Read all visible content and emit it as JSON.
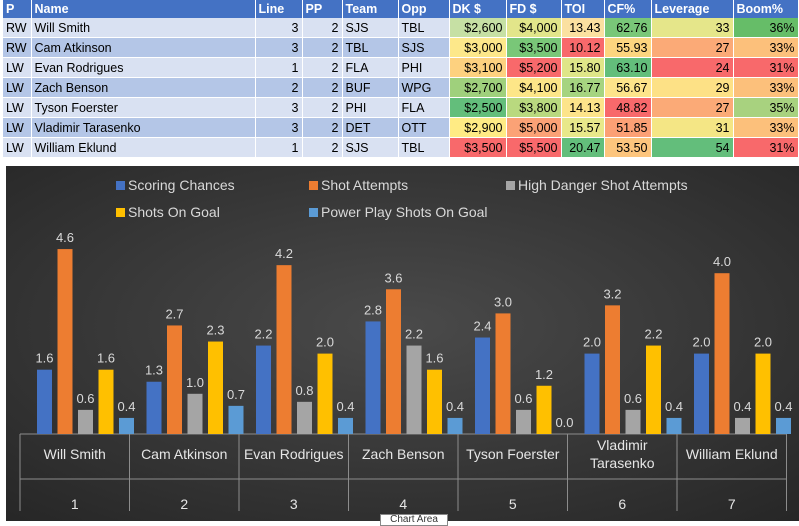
{
  "table": {
    "headers": [
      "P",
      "Name",
      "Line",
      "PP",
      "Team",
      "Opp",
      "DK $",
      "FD $",
      "TOI",
      "CF%",
      "Leverage",
      "Boom%"
    ],
    "rows": [
      {
        "pos": "RW",
        "name": "Will Smith",
        "line": "3",
        "pp": "2",
        "team": "SJS",
        "opp": "TBL",
        "dk": "$2,600",
        "fd": "$4,000",
        "toi": "13.43",
        "cf": "62.76",
        "lev": "33",
        "boom": "36%",
        "colors": {
          "dk": "#c6e0a4",
          "fd": "#e2e58a",
          "toi": "#fbe0a0",
          "cf": "#79c778",
          "lev": "#e5e68a",
          "boom": "#66bd68"
        }
      },
      {
        "pos": "RW",
        "name": "Cam Atkinson",
        "line": "3",
        "pp": "2",
        "team": "TBL",
        "opp": "SJS",
        "dk": "$3,000",
        "fd": "$3,500",
        "toi": "10.12",
        "cf": "55.93",
        "lev": "27",
        "boom": "33%",
        "colors": {
          "dk": "#fde88a",
          "fd": "#79c778",
          "toi": "#f8696b",
          "cf": "#fdd57f",
          "lev": "#fbaa77",
          "boom": "#fcc07b"
        }
      },
      {
        "pos": "LW",
        "name": "Evan Rodrigues",
        "line": "1",
        "pp": "2",
        "team": "FLA",
        "opp": "PHI",
        "dk": "$3,100",
        "fd": "$5,200",
        "toi": "15.80",
        "cf": "63.10",
        "lev": "24",
        "boom": "31%",
        "colors": {
          "dk": "#fdd17f",
          "fd": "#f8696b",
          "toi": "#dfe688",
          "cf": "#63be7b",
          "lev": "#f8696b",
          "boom": "#f8696b"
        }
      },
      {
        "pos": "LW",
        "name": "Zach Benson",
        "line": "2",
        "pp": "2",
        "team": "BUF",
        "opp": "WPG",
        "dk": "$2,700",
        "fd": "$4,100",
        "toi": "16.77",
        "cf": "56.67",
        "lev": "29",
        "boom": "33%",
        "colors": {
          "dk": "#9fd07c",
          "fd": "#fde688",
          "toi": "#a6d480",
          "cf": "#fde48a",
          "lev": "#fde186",
          "boom": "#fcc07b"
        }
      },
      {
        "pos": "LW",
        "name": "Tyson Foerster",
        "line": "3",
        "pp": "2",
        "team": "PHI",
        "opp": "FLA",
        "dk": "$2,500",
        "fd": "$3,800",
        "toi": "14.13",
        "cf": "48.82",
        "lev": "27",
        "boom": "35%",
        "colors": {
          "dk": "#63be7b",
          "fd": "#b9d97f",
          "toi": "#fde48a",
          "cf": "#f8696b",
          "lev": "#fbaa77",
          "boom": "#a8d27f"
        }
      },
      {
        "pos": "LW",
        "name": "Vladimir Tarasenko",
        "line": "3",
        "pp": "2",
        "team": "DET",
        "opp": "OTT",
        "dk": "$2,900",
        "fd": "$5,000",
        "toi": "15.57",
        "cf": "51.85",
        "lev": "31",
        "boom": "33%",
        "colors": {
          "dk": "#ffeb84",
          "fd": "#fba276",
          "toi": "#e8e88a",
          "cf": "#fca075",
          "lev": "#f4e685",
          "boom": "#fcc07b"
        }
      },
      {
        "pos": "LW",
        "name": "William Eklund",
        "line": "1",
        "pp": "2",
        "team": "SJS",
        "opp": "TBL",
        "dk": "$3,500",
        "fd": "$5,500",
        "toi": "20.47",
        "cf": "53.50",
        "lev": "54",
        "boom": "31%",
        "colors": {
          "dk": "#f8696b",
          "fd": "#f8696b",
          "toi": "#63be7b",
          "cf": "#fdc57d",
          "lev": "#63be7b",
          "boom": "#f8696b"
        }
      }
    ]
  },
  "chart_data": {
    "type": "bar",
    "categories": [
      "Will Smith",
      "Cam Atkinson",
      "Evan Rodrigues",
      "Zach Benson",
      "Tyson Foerster",
      "Vladimir Tarasenko",
      "William Eklund"
    ],
    "category_lines": [
      [
        "Will Smith"
      ],
      [
        "Cam Atkinson"
      ],
      [
        "Evan Rodrigues"
      ],
      [
        "Zach Benson"
      ],
      [
        "Tyson Foerster"
      ],
      [
        "Vladimir",
        "Tarasenko"
      ],
      [
        "William Eklund"
      ]
    ],
    "group_numbers": [
      "1",
      "2",
      "3",
      "4",
      "5",
      "6",
      "7"
    ],
    "series": [
      {
        "name": "Scoring Chances",
        "color": "#4472c4",
        "values": [
          1.6,
          1.3,
          2.2,
          2.8,
          2.4,
          2.0,
          2.0
        ]
      },
      {
        "name": "Shot Attempts",
        "color": "#ed7d31",
        "values": [
          4.6,
          2.7,
          4.2,
          3.6,
          3.0,
          3.2,
          4.0
        ]
      },
      {
        "name": "High Danger Shot Attempts",
        "color": "#a5a5a5",
        "values": [
          0.6,
          1.0,
          0.8,
          2.2,
          0.6,
          0.6,
          0.4
        ]
      },
      {
        "name": "Shots On Goal",
        "color": "#ffc000",
        "values": [
          1.6,
          2.3,
          2.0,
          1.6,
          1.2,
          2.2,
          2.0
        ]
      },
      {
        "name": "Power Play Shots On Goal",
        "color": "#5b9bd5",
        "values": [
          0.4,
          0.7,
          0.4,
          0.4,
          0.0,
          0.4,
          0.4
        ]
      }
    ],
    "ylim": [
      0,
      5
    ],
    "tooltip": "Chart Area",
    "legend": "top",
    "background": "#3a3a3a"
  }
}
